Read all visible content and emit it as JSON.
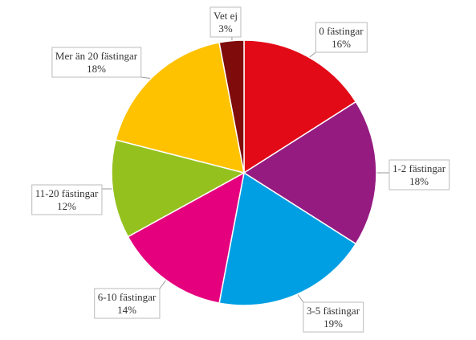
{
  "chart_data": {
    "type": "pie",
    "categories": [
      "0 fästingar",
      "1-2 fästingar",
      "3-5 fästingar",
      "6-10 fästingar",
      "11-20 fästingar",
      "Mer än 20 fästingar",
      "Vet ej"
    ],
    "values": [
      16,
      18,
      19,
      14,
      12,
      18,
      3
    ],
    "value_labels": [
      "16%",
      "18%",
      "19%",
      "14%",
      "12%",
      "18%",
      "3%"
    ],
    "colors": [
      "#e30a17",
      "#951b81",
      "#009fe3",
      "#e5007e",
      "#95c11f",
      "#fec200",
      "#7f0b0b"
    ]
  }
}
